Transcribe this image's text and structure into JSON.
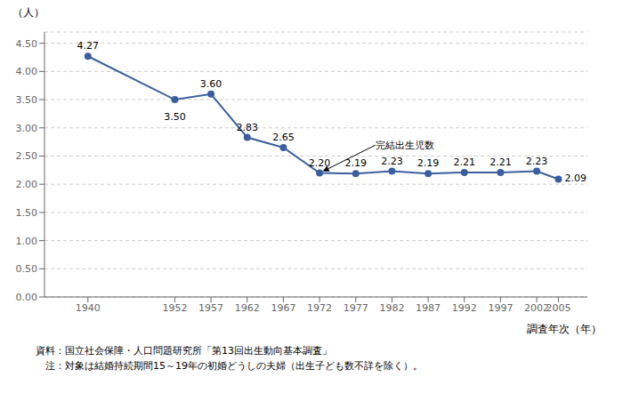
{
  "chart_data": {
    "type": "line",
    "x": [
      1940,
      1952,
      1957,
      1962,
      1967,
      1972,
      1977,
      1982,
      1987,
      1992,
      1997,
      2002,
      2005
    ],
    "values": [
      4.27,
      3.5,
      3.6,
      2.83,
      2.65,
      2.2,
      2.19,
      2.23,
      2.19,
      2.21,
      2.21,
      2.23,
      2.09
    ],
    "value_labels": [
      "4.27",
      "3.50",
      "3.60",
      "2.83",
      "2.65",
      "2.20",
      "2.19",
      "2.23",
      "2.19",
      "2.21",
      "2.21",
      "2.23",
      "2.09"
    ],
    "data_labels": true,
    "color": "#3A5FA0",
    "marker": "circle",
    "xlabel": "調査年次（年）",
    "ylabel": "（人）",
    "xlim": [
      1934,
      2009
    ],
    "xticks": [
      1940,
      1952,
      1957,
      1962,
      1967,
      1972,
      1977,
      1982,
      1987,
      1992,
      1997,
      2002,
      2005
    ],
    "ylim": [
      0.0,
      4.7
    ],
    "yticks": [
      {
        "value": 0.0,
        "label": "0.00"
      },
      {
        "value": 0.5,
        "label": "0.50"
      },
      {
        "value": 1.0,
        "label": "1.00"
      },
      {
        "value": 1.5,
        "label": "1.50"
      },
      {
        "value": 2.0,
        "label": "2.00"
      },
      {
        "value": 2.5,
        "label": "2.50"
      },
      {
        "value": 3.0,
        "label": "3.00"
      },
      {
        "value": 3.5,
        "label": "3.50"
      },
      {
        "value": 4.0,
        "label": "4.00"
      },
      {
        "value": 4.5,
        "label": "4.50"
      }
    ],
    "grid": true,
    "annotations": [
      {
        "text": "完結出生児数",
        "x": 1979.5,
        "y": 2.68,
        "target_x": 1972,
        "target_y": 2.2
      }
    ],
    "notes": [
      "資料：国立社会保障・人口問題研究所「第13回出生動向基本調査」",
      "　注：対象は結婚持続期間15～19年の初婚どうしの夫婦（出生子ども数不詳を除く）。"
    ]
  }
}
